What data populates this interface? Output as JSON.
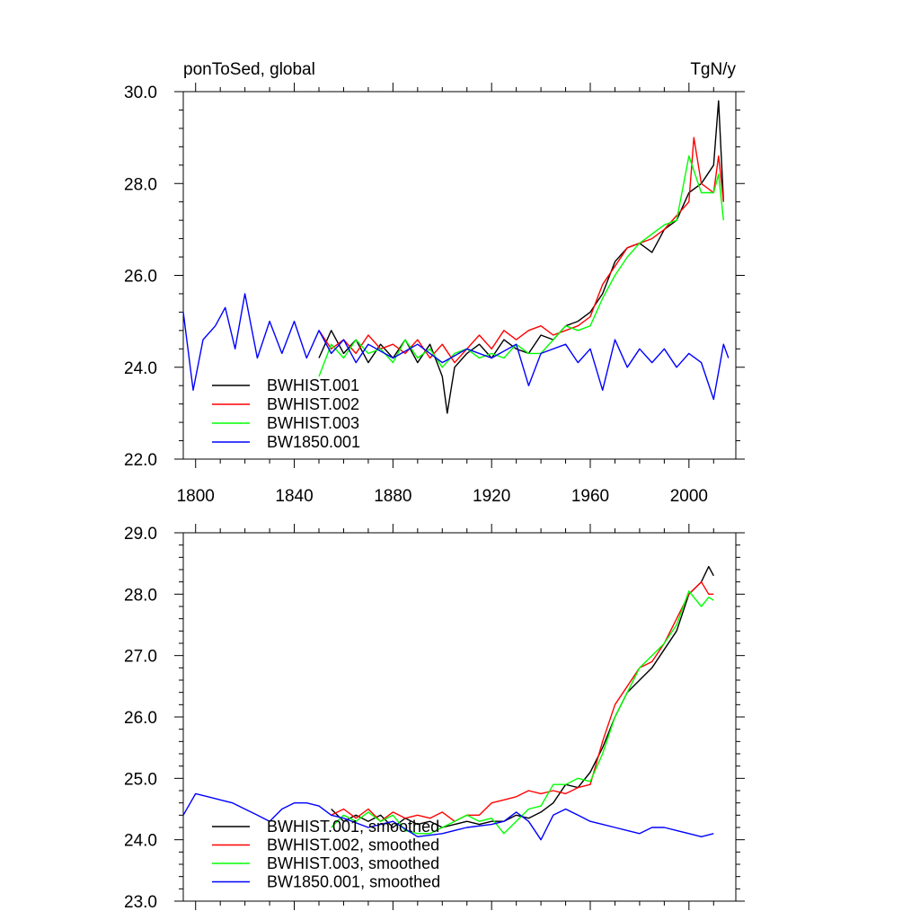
{
  "figure": {
    "left_title": "ponToSed, global",
    "right_title": "TgN/y"
  },
  "chart_data": [
    {
      "type": "line",
      "title": "ponToSed, global",
      "units": "TgN/y",
      "xlim": [
        1795,
        2019
      ],
      "ylim": [
        22.0,
        30.0
      ],
      "xticks": [
        1800,
        1840,
        1880,
        1920,
        1960,
        2000
      ],
      "xtick_labels": [
        "1800",
        "1840",
        "1880",
        "1920",
        "1960",
        "2000"
      ],
      "yticks": [
        22.0,
        24.0,
        26.0,
        28.0,
        30.0
      ],
      "ytick_labels": [
        "22.0",
        "24.0",
        "26.0",
        "28.0",
        "30.0"
      ],
      "legend_position": "bottom-left",
      "series": [
        {
          "name": "BWHIST.001",
          "color": "#000000",
          "x": [
            1850,
            1855,
            1860,
            1865,
            1870,
            1875,
            1880,
            1885,
            1890,
            1895,
            1900,
            1902,
            1905,
            1910,
            1915,
            1920,
            1925,
            1930,
            1935,
            1940,
            1945,
            1950,
            1955,
            1960,
            1965,
            1970,
            1975,
            1980,
            1985,
            1990,
            1995,
            2000,
            2005,
            2010,
            2012,
            2014
          ],
          "y": [
            24.2,
            24.8,
            24.3,
            24.6,
            24.1,
            24.5,
            24.2,
            24.6,
            24.1,
            24.5,
            23.8,
            23.0,
            24.0,
            24.3,
            24.5,
            24.2,
            24.6,
            24.4,
            24.3,
            24.7,
            24.6,
            24.9,
            25.0,
            25.2,
            25.6,
            26.3,
            26.6,
            26.7,
            26.5,
            27.0,
            27.2,
            27.8,
            28.0,
            28.4,
            29.8,
            27.6
          ]
        },
        {
          "name": "BWHIST.002",
          "color": "#ff0000",
          "x": [
            1850,
            1855,
            1860,
            1865,
            1870,
            1875,
            1880,
            1885,
            1890,
            1895,
            1900,
            1905,
            1910,
            1915,
            1920,
            1925,
            1930,
            1935,
            1940,
            1945,
            1950,
            1955,
            1960,
            1965,
            1970,
            1975,
            1980,
            1985,
            1990,
            1995,
            2000,
            2002,
            2005,
            2010,
            2012,
            2014
          ],
          "y": [
            24.8,
            24.4,
            24.6,
            24.3,
            24.7,
            24.4,
            24.5,
            24.3,
            24.6,
            24.2,
            24.5,
            24.1,
            24.4,
            24.7,
            24.4,
            24.8,
            24.6,
            24.8,
            24.9,
            24.7,
            24.8,
            24.9,
            25.1,
            25.8,
            26.2,
            26.6,
            26.7,
            26.8,
            27.0,
            27.3,
            27.6,
            29.0,
            28.0,
            27.8,
            28.6,
            27.6
          ]
        },
        {
          "name": "BWHIST.003",
          "color": "#00ff00",
          "x": [
            1850,
            1855,
            1860,
            1865,
            1870,
            1875,
            1880,
            1885,
            1890,
            1895,
            1900,
            1905,
            1910,
            1915,
            1920,
            1925,
            1930,
            1935,
            1940,
            1945,
            1950,
            1955,
            1960,
            1965,
            1970,
            1975,
            1980,
            1985,
            1990,
            1995,
            2000,
            2005,
            2010,
            2012,
            2014
          ],
          "y": [
            23.8,
            24.5,
            24.2,
            24.6,
            24.3,
            24.4,
            24.1,
            24.6,
            24.2,
            24.4,
            24.0,
            24.3,
            24.4,
            24.2,
            24.3,
            24.2,
            24.5,
            24.3,
            24.3,
            24.6,
            24.9,
            24.8,
            24.9,
            25.5,
            26.0,
            26.4,
            26.7,
            26.9,
            27.1,
            27.2,
            28.6,
            27.8,
            27.8,
            28.2,
            27.2
          ]
        },
        {
          "name": "BW1850.001",
          "color": "#0000ff",
          "x": [
            1795,
            1799,
            1803,
            1808,
            1812,
            1816,
            1820,
            1825,
            1830,
            1835,
            1840,
            1845,
            1850,
            1855,
            1860,
            1865,
            1870,
            1880,
            1890,
            1900,
            1910,
            1920,
            1930,
            1935,
            1940,
            1950,
            1955,
            1960,
            1965,
            1970,
            1975,
            1980,
            1985,
            1990,
            1995,
            2000,
            2005,
            2010,
            2014,
            2016
          ],
          "y": [
            25.2,
            23.5,
            24.6,
            24.9,
            25.3,
            24.4,
            25.6,
            24.2,
            25.0,
            24.3,
            25.0,
            24.2,
            24.8,
            24.3,
            24.6,
            24.1,
            24.5,
            24.2,
            24.5,
            24.1,
            24.4,
            24.2,
            24.5,
            23.6,
            24.3,
            24.5,
            24.1,
            24.4,
            23.5,
            24.6,
            24.0,
            24.4,
            24.1,
            24.4,
            24.0,
            24.3,
            24.1,
            23.3,
            24.5,
            24.2
          ]
        }
      ]
    },
    {
      "type": "line",
      "xlim": [
        1795,
        2019
      ],
      "ylim": [
        23.0,
        29.0
      ],
      "xticks": [
        1800,
        1840,
        1880,
        1920,
        1960,
        2000
      ],
      "yticks": [
        23.0,
        24.0,
        25.0,
        26.0,
        27.0,
        28.0,
        29.0
      ],
      "ytick_labels": [
        "23.0",
        "24.0",
        "25.0",
        "26.0",
        "27.0",
        "28.0",
        "29.0"
      ],
      "legend_position": "bottom-left",
      "series": [
        {
          "name": "BWHIST.001, smoothed",
          "color": "#000000",
          "x": [
            1855,
            1860,
            1865,
            1870,
            1875,
            1880,
            1885,
            1890,
            1895,
            1900,
            1905,
            1910,
            1915,
            1920,
            1925,
            1930,
            1935,
            1940,
            1945,
            1950,
            1955,
            1960,
            1965,
            1970,
            1975,
            1980,
            1985,
            1990,
            1995,
            2000,
            2005,
            2008,
            2010
          ],
          "y": [
            24.5,
            24.3,
            24.4,
            24.3,
            24.4,
            24.2,
            24.35,
            24.25,
            24.3,
            24.2,
            24.25,
            24.3,
            24.25,
            24.3,
            24.3,
            24.4,
            24.35,
            24.45,
            24.6,
            24.9,
            24.85,
            25.1,
            25.5,
            26.0,
            26.4,
            26.6,
            26.8,
            27.1,
            27.4,
            28.0,
            28.2,
            28.45,
            28.3
          ]
        },
        {
          "name": "BWHIST.002, smoothed",
          "color": "#ff0000",
          "x": [
            1855,
            1860,
            1865,
            1870,
            1875,
            1880,
            1885,
            1890,
            1895,
            1900,
            1905,
            1910,
            1915,
            1920,
            1925,
            1930,
            1935,
            1940,
            1945,
            1950,
            1955,
            1960,
            1965,
            1970,
            1975,
            1980,
            1985,
            1990,
            1995,
            2000,
            2005,
            2008,
            2010
          ],
          "y": [
            24.4,
            24.5,
            24.35,
            24.5,
            24.3,
            24.45,
            24.35,
            24.4,
            24.35,
            24.45,
            24.3,
            24.4,
            24.4,
            24.6,
            24.65,
            24.7,
            24.8,
            24.75,
            24.8,
            24.75,
            24.85,
            24.9,
            25.6,
            26.2,
            26.5,
            26.8,
            26.9,
            27.2,
            27.6,
            28.0,
            28.2,
            28.0,
            28.0
          ]
        },
        {
          "name": "BWHIST.003, smoothed",
          "color": "#00ff00",
          "x": [
            1855,
            1860,
            1865,
            1870,
            1875,
            1880,
            1885,
            1890,
            1895,
            1900,
            1905,
            1910,
            1915,
            1920,
            1925,
            1930,
            1935,
            1940,
            1945,
            1950,
            1955,
            1960,
            1965,
            1970,
            1975,
            1980,
            1985,
            1990,
            1995,
            2000,
            2005,
            2008,
            2010
          ],
          "y": [
            24.2,
            24.4,
            24.3,
            24.45,
            24.3,
            24.4,
            24.15,
            24.1,
            24.1,
            24.2,
            24.3,
            24.4,
            24.3,
            24.35,
            24.1,
            24.3,
            24.5,
            24.55,
            24.9,
            24.9,
            25.0,
            24.95,
            25.4,
            26.0,
            26.4,
            26.8,
            27.0,
            27.2,
            27.5,
            28.05,
            27.8,
            27.95,
            27.9
          ]
        },
        {
          "name": "BW1850.001, smoothed",
          "color": "#0000ff",
          "x": [
            1795,
            1800,
            1805,
            1810,
            1815,
            1820,
            1825,
            1830,
            1835,
            1840,
            1845,
            1850,
            1855,
            1860,
            1870,
            1880,
            1890,
            1900,
            1910,
            1920,
            1925,
            1930,
            1935,
            1940,
            1945,
            1950,
            1955,
            1960,
            1965,
            1970,
            1975,
            1980,
            1985,
            1990,
            1995,
            2000,
            2005,
            2010
          ],
          "y": [
            24.4,
            24.75,
            24.7,
            24.65,
            24.6,
            24.5,
            24.4,
            24.3,
            24.5,
            24.6,
            24.6,
            24.55,
            24.4,
            24.35,
            24.2,
            24.3,
            24.05,
            24.1,
            24.2,
            24.25,
            24.3,
            24.45,
            24.3,
            24.0,
            24.4,
            24.5,
            24.4,
            24.3,
            24.25,
            24.2,
            24.15,
            24.1,
            24.2,
            24.2,
            24.15,
            24.1,
            24.05,
            24.1
          ]
        }
      ]
    }
  ]
}
